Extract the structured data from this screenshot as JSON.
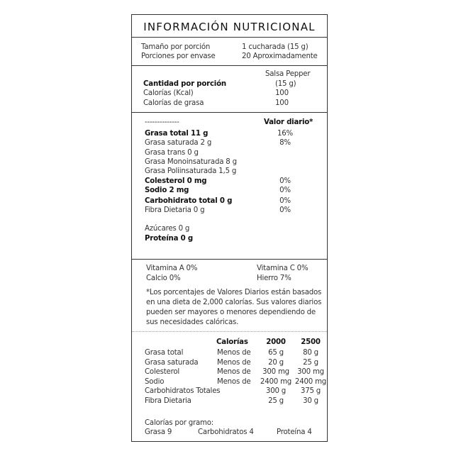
{
  "title": "INFORMACIÓN NUTRICIONAL",
  "serving": {
    "size_label": "Tamaño por porción",
    "size_value": "1 cucharada (15 g)",
    "servings_label": "Porciones por envase",
    "servings_value": "20 Aproximadamente"
  },
  "amount": {
    "product": "Salsa Pepper",
    "portion": "(15 g)",
    "header": "Cantidad por porción",
    "calories_label": "Calorías (Kcal)",
    "calories_value": "100",
    "fat_cal_label": "Calorías de grasa",
    "fat_cal_value": "100"
  },
  "nutrients": {
    "dashes": "--------------",
    "dv_header": "Valor diario*",
    "items": [
      {
        "label": "Grasa total 11 g",
        "dv": "16%"
      },
      {
        "label": "Grasa saturada 2 g",
        "dv": "8%"
      },
      {
        "label": "Grasa trans 0 g",
        "dv": ""
      },
      {
        "label": "Grasa Monoinsaturada 8 g",
        "dv": ""
      },
      {
        "label": "Grasa Poliinsaturada 1,5 g",
        "dv": ""
      },
      {
        "label": "Colesterol 0 mg",
        "dv": "0%"
      },
      {
        "label": "Sodio 2 mg",
        "dv": "0%"
      },
      {
        "label": "Carbohidrato total 0 g",
        "dv": "0%"
      },
      {
        "label": "Fibra Dietaria 0 g",
        "dv": "0%"
      },
      {
        "label": "Azúcares 0 g",
        "dv": ""
      },
      {
        "label": "Proteína 0 g",
        "dv": ""
      }
    ]
  },
  "vitamins": {
    "a": "Vitamina A 0%",
    "c": "Vitamina C 0%",
    "calcium": "Calcio 0%",
    "iron": "Hierro 7%"
  },
  "footnote": [
    "*Los porcentajes de Valores Diarios están basados",
    "en una dieta de 2,000 calorías. Sus valores diarios",
    "pueden ser mayores o menores dependiendo de",
    "sus necesidades calóricas."
  ],
  "reference": {
    "headers": [
      "Calorías",
      "2000",
      "2500"
    ],
    "rows": [
      [
        "Grasa total",
        "Menos de",
        "65 g",
        "80 g"
      ],
      [
        "Grasa saturada",
        "Menos de",
        "20 g",
        "25 g"
      ],
      [
        "Colesterol",
        "Menos de",
        "300 mg",
        "300 mg"
      ],
      [
        "Sodio",
        "Menos de",
        "2400 mg",
        "2400 mg"
      ],
      [
        "Carbohidratos Totales",
        "",
        "300 g",
        "375 g"
      ],
      [
        "Fibra Dietaria",
        "",
        "25 g",
        "30 g"
      ]
    ]
  },
  "per_gram": {
    "title": "Calorías por gramo:",
    "fat": "Grasa 9",
    "carbs": "Carbohidratos 4",
    "protein": "Proteína 4"
  }
}
